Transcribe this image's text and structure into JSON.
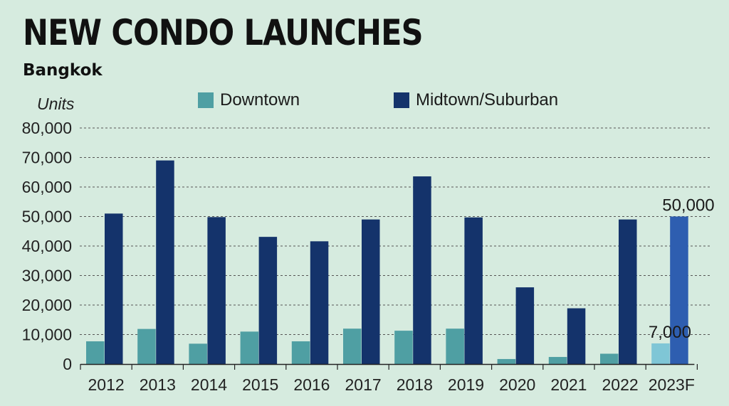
{
  "chart_data": {
    "type": "bar",
    "title": "NEW CONDO LAUNCHES",
    "subtitle": "Bangkok",
    "ylabel": "Units",
    "xlabel": "",
    "ylim": [
      0,
      80000
    ],
    "y_ticks": [
      0,
      10000,
      20000,
      30000,
      40000,
      50000,
      60000,
      70000,
      80000
    ],
    "y_tick_labels": [
      "0",
      "10,000",
      "20,000",
      "30,000",
      "40,000",
      "50,000",
      "60,000",
      "70,000",
      "80,000"
    ],
    "grid": true,
    "legend_position": "top",
    "categories": [
      "2012",
      "2013",
      "2014",
      "2015",
      "2016",
      "2017",
      "2018",
      "2019",
      "2020",
      "2021",
      "2022",
      "2023F"
    ],
    "series": [
      {
        "name": "Downtown",
        "color": "#4f9fa3",
        "forecast_color": "#7fc6d6",
        "values": [
          7700,
          11900,
          6900,
          11000,
          7700,
          12000,
          11300,
          12000,
          1700,
          2400,
          3500,
          7000
        ]
      },
      {
        "name": "Midtown/Suburban",
        "color": "#14336b",
        "forecast_color": "#2e5eb0",
        "values": [
          51000,
          69000,
          49800,
          43100,
          41600,
          49000,
          63600,
          49700,
          26000,
          18900,
          49000,
          50000
        ]
      }
    ],
    "annotations": [
      {
        "category": "2023F",
        "series": "Downtown",
        "text": "7,000"
      },
      {
        "category": "2023F",
        "series": "Midtown/Suburban",
        "text": "50,000"
      }
    ]
  }
}
